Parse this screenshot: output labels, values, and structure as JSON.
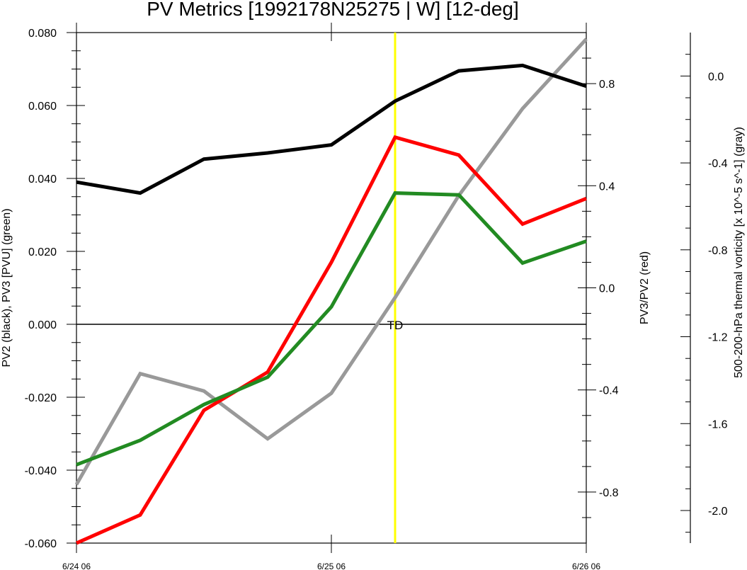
{
  "chart_data": {
    "type": "line",
    "title": "PV Metrics [1992178N25275 | W] [12-deg]",
    "x_tick_labels": [
      "6/24 06",
      "6/25 06",
      "6/26 06"
    ],
    "x_range_hours": [
      0,
      48
    ],
    "x_tick_hours": [
      0,
      24,
      48
    ],
    "axes": {
      "left": {
        "label": "PV2 (black), PV3 [PVU] (green)",
        "range": [
          -0.06,
          0.08
        ],
        "ticks": [
          -0.06,
          -0.04,
          -0.02,
          0.0,
          0.02,
          0.04,
          0.06,
          0.08
        ],
        "tick_labels": [
          "-0.060",
          "-0.040",
          "-0.020",
          "0.000",
          "0.020",
          "0.040",
          "0.060",
          "0.080"
        ]
      },
      "right": {
        "label": "PV3/PV2 (red)",
        "range": [
          -1.0,
          1.0
        ],
        "ticks": [
          -0.8,
          -0.4,
          0.0,
          0.4,
          0.8
        ],
        "tick_labels": [
          "-0.8",
          "-0.4",
          "0.0",
          "0.4",
          "0.8"
        ]
      },
      "far_right": {
        "label": "500-200-hPa thermal vorticity [x 10^-5 s^-1] (gray)",
        "range": [
          -2.15,
          0.2
        ],
        "ticks": [
          -2.0,
          -1.6,
          -1.2,
          -0.8,
          -0.4,
          0.0
        ],
        "tick_labels": [
          "-2.0",
          "-1.6",
          "-1.2",
          "-0.8",
          "-0.4",
          "0.0"
        ]
      }
    },
    "series": [
      {
        "color": "#000000",
        "axis": "left",
        "x_hours": [
          0,
          6,
          12,
          18,
          24,
          30,
          36,
          42,
          48
        ],
        "values": [
          0.039,
          0.036,
          0.0453,
          0.047,
          0.0492,
          0.0612,
          0.0695,
          0.071,
          0.0653
        ]
      },
      {
        "color": "#228b22",
        "axis": "left",
        "x_hours": [
          0,
          6,
          12,
          18,
          24,
          30,
          36,
          42,
          48
        ],
        "values": [
          -0.0385,
          -0.0318,
          -0.022,
          -0.0145,
          0.0048,
          0.036,
          0.0355,
          0.0168,
          0.0228
        ]
      },
      {
        "color": "#ff0000",
        "axis": "right",
        "x_hours": [
          0,
          6,
          12,
          18,
          24,
          30,
          36,
          42,
          48
        ],
        "values": [
          -1.0,
          -0.89,
          -0.48,
          -0.33,
          0.1,
          0.59,
          0.52,
          0.25,
          0.35
        ]
      },
      {
        "color": "#999999",
        "axis": "far_right",
        "x_hours": [
          0,
          6,
          12,
          18,
          24,
          30,
          36,
          42,
          48
        ],
        "values": [
          -1.88,
          -1.37,
          -1.45,
          -1.67,
          -1.46,
          -1.02,
          -0.55,
          -0.15,
          0.17
        ]
      }
    ],
    "reference_lines": {
      "zero_line": {
        "axis": "left",
        "value": 0.0,
        "color": "#000000"
      },
      "event_line": {
        "x_hours": 30,
        "color": "#ffff00",
        "label": "TD"
      }
    },
    "grid": false,
    "legend": "none"
  }
}
